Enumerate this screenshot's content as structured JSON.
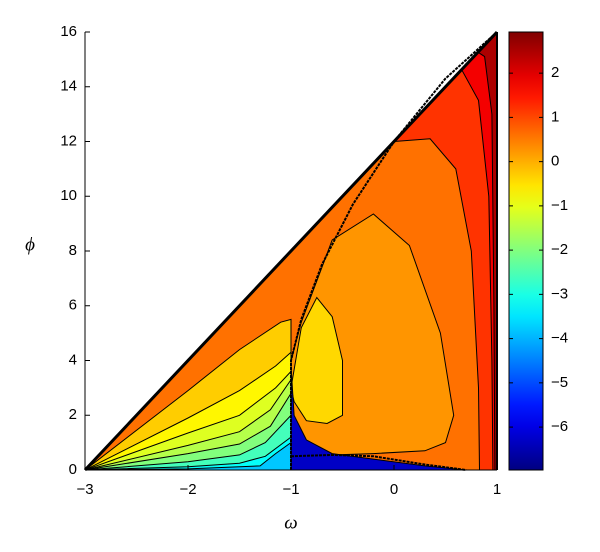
{
  "chart_data": {
    "type": "contour",
    "xlabel": "ω",
    "ylabel": "ϕ",
    "xlim": [
      -3,
      1
    ],
    "ylim": [
      0,
      16
    ],
    "xticks": [
      {
        "value": -3,
        "label": "−3"
      },
      {
        "value": -2,
        "label": "−2"
      },
      {
        "value": -1,
        "label": "−1"
      },
      0,
      1
    ],
    "yticks": [
      0,
      2,
      4,
      6,
      8,
      10,
      12,
      14,
      16
    ],
    "colormap": "jet",
    "colorbar": {
      "lim": [
        -6.97,
        2.93
      ],
      "ticks": [
        {
          "value": -6,
          "label": "−6"
        },
        {
          "value": -5,
          "label": "−5"
        },
        {
          "value": -4,
          "label": "−4"
        },
        {
          "value": -3,
          "label": "−3"
        },
        {
          "value": -2,
          "label": "−2"
        },
        {
          "value": -1,
          "label": "−1"
        },
        0,
        1,
        2
      ]
    },
    "levels": [
      0.6,
      1.2,
      1.8,
      2.5,
      0.25,
      -0.3,
      -0.7,
      -1.1,
      -1.5,
      -2,
      -2.6,
      -3.2,
      -3.8,
      -0.4,
      -6.3
    ]
  }
}
